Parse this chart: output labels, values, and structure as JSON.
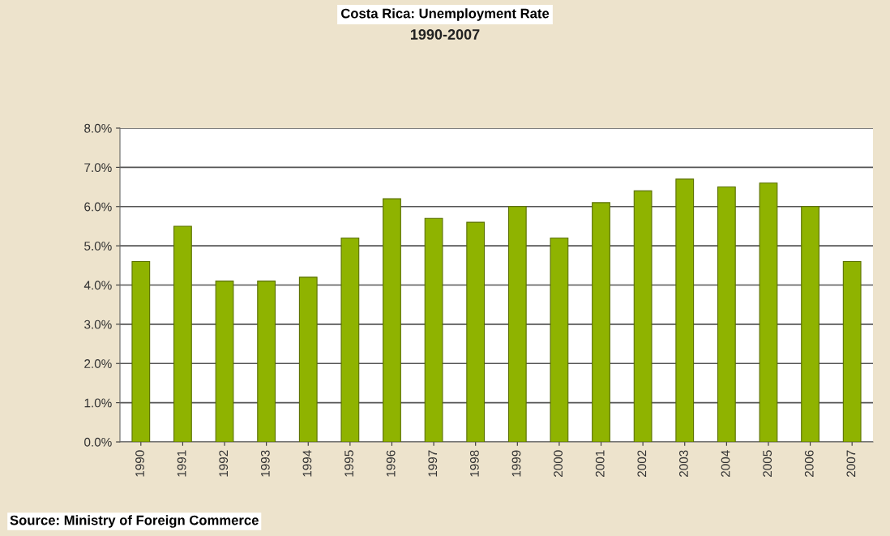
{
  "chart_data": {
    "type": "bar",
    "title": "Costa Rica: Unemployment Rate",
    "subtitle": "1990-2007",
    "categories": [
      "1990",
      "1991",
      "1992",
      "1993",
      "1994",
      "1995",
      "1996",
      "1997",
      "1998",
      "1999",
      "2000",
      "2001",
      "2002",
      "2003",
      "2004",
      "2005",
      "2006",
      "2007"
    ],
    "values": [
      4.6,
      5.5,
      4.1,
      4.1,
      4.2,
      5.2,
      6.2,
      5.7,
      5.6,
      6.0,
      5.2,
      6.1,
      6.4,
      6.7,
      6.5,
      6.6,
      6.0,
      4.6
    ],
    "color": "#8fb300",
    "ylim": [
      0,
      8
    ],
    "yticks": [
      {
        "value": 0,
        "label": "0.0%"
      },
      {
        "value": 1,
        "label": "1.0%"
      },
      {
        "value": 2,
        "label": "2.0%"
      },
      {
        "value": 3,
        "label": "3.0%"
      },
      {
        "value": 4,
        "label": "4.0%"
      },
      {
        "value": 5,
        "label": "5.0%"
      },
      {
        "value": 6,
        "label": "6.0%"
      },
      {
        "value": 7,
        "label": "7.0%"
      },
      {
        "value": 8,
        "label": "8.0%"
      }
    ],
    "grid": "y",
    "annotations": [
      "Source: Ministry of Foreign Commerce"
    ]
  }
}
